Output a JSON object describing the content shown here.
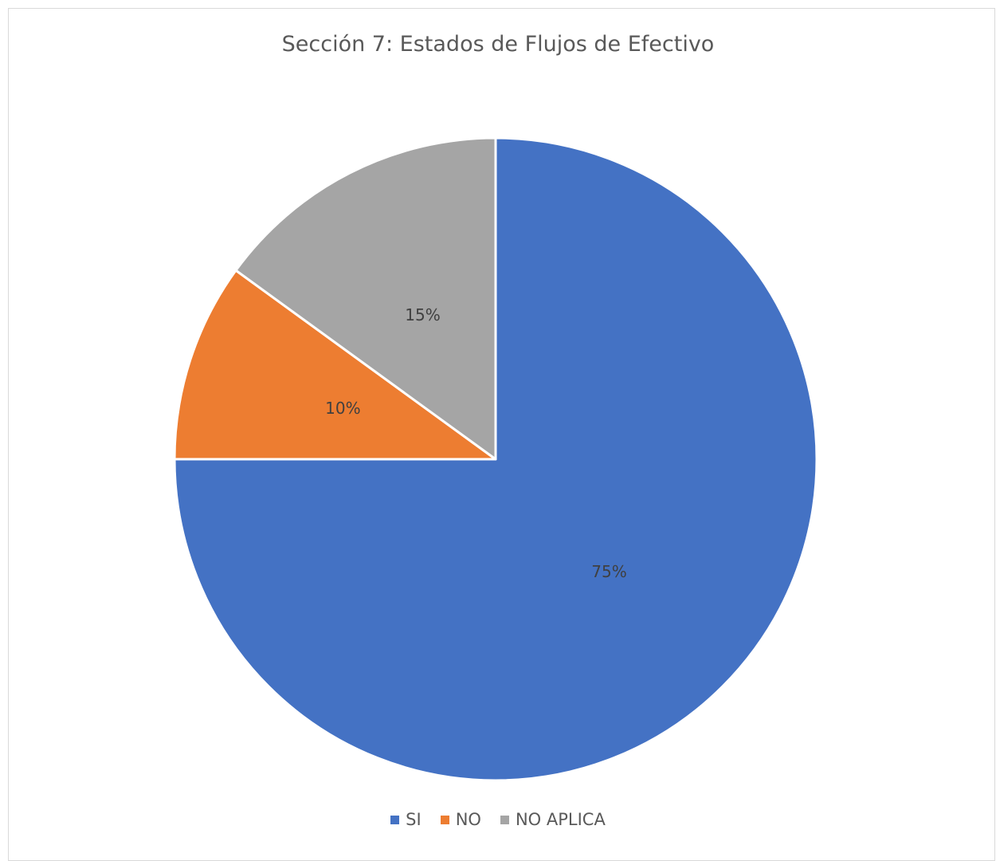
{
  "chart_data": {
    "type": "pie",
    "title": "Sección 7: Estados de Flujos de Efectivo",
    "categories": [
      "SI",
      "NO",
      "NO APLICA"
    ],
    "values": [
      75,
      10,
      15
    ],
    "data_labels": [
      "75%",
      "10%",
      "15%"
    ],
    "colors": [
      "#4472C4",
      "#ED7D31",
      "#A5A5A5"
    ],
    "legend_position": "bottom",
    "start_angle": "12 o'clock, clockwise"
  }
}
